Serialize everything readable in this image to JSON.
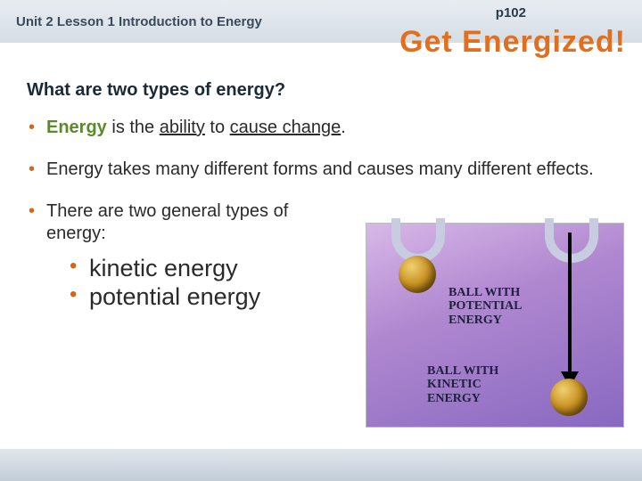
{
  "header": {
    "unit_label": "Unit 2 Lesson 1  Introduction to Energy",
    "page_ref": "p102",
    "title": "Get Energized!"
  },
  "section_question": "What are two types of energy?",
  "bullets": {
    "b1_term": "Energy",
    "b1_mid": " is the ",
    "b1_u1": "ability",
    "b1_mid2": " to ",
    "b1_u2": "cause change",
    "b1_end": ".",
    "b2": "Energy takes many different forms and causes many different effects.",
    "b3": "There are two general types of energy:",
    "sub1": "kinetic energy",
    "sub2": "potential energy"
  },
  "diagram": {
    "label_pe_l1": "BALL WITH",
    "label_pe_l2": "POTENTIAL",
    "label_pe_l3": "ENERGY",
    "label_ke_l1": "BALL WITH",
    "label_ke_l2": "KINETIC",
    "label_ke_l3": "ENERGY"
  },
  "colors": {
    "accent_orange": "#e07020",
    "bullet_orange": "#d06818",
    "term_green": "#5a8a2a",
    "header_grad_top": "#e8edf2",
    "header_grad_bot": "#d5dde5",
    "diagram_grad_a": "#d8b8e8",
    "diagram_grad_b": "#8868c0"
  },
  "typography": {
    "body_font": "Verdana",
    "title_size_pt": 26,
    "question_size_pt": 15,
    "bullet_size_pt": 15,
    "sub_bullet_size_pt": 20,
    "diagram_font": "Comic Sans MS"
  }
}
